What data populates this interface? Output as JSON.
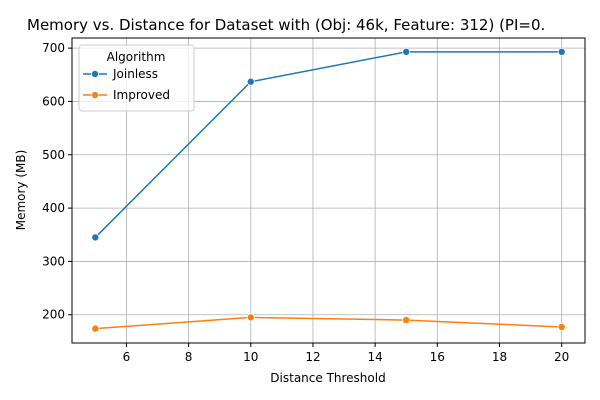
{
  "chart_data": {
    "type": "line",
    "title": "Memory vs. Distance for Dataset with (Obj: 46k, Feature: 312) (PI=0.",
    "xlabel": "Distance Threshold",
    "ylabel": "Memory (MB)",
    "xlim": [
      4.25,
      20.75
    ],
    "ylim": [
      147,
      719
    ],
    "xticks": [
      6,
      8,
      10,
      12,
      14,
      16,
      18,
      20
    ],
    "yticks": [
      200,
      300,
      400,
      500,
      600,
      700
    ],
    "grid": true,
    "legend": {
      "title": "Algorithm",
      "placement": "top-left"
    },
    "x": [
      5,
      10,
      15,
      20
    ],
    "series": [
      {
        "name": "Joinless",
        "color": "#1f77b4",
        "values": [
          345,
          637,
          693,
          693
        ]
      },
      {
        "name": "Improved",
        "color": "#ff7f0e",
        "values": [
          174,
          195,
          190,
          177
        ]
      }
    ]
  }
}
